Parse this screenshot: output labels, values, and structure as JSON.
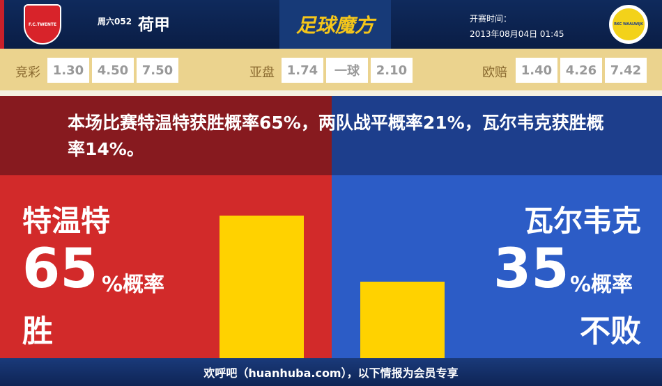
{
  "header": {
    "home_logo_text": "F.C.TWENTE",
    "away_logo_text": "RKC WAALWIJK",
    "match_no": "周六052",
    "league": "荷甲",
    "brand": "足球魔方",
    "time_label": "开赛时间：",
    "time_value": "2013年08月04日 01:45"
  },
  "odds": {
    "jingcai": {
      "label": "竞彩",
      "values": [
        "1.30",
        "4.50",
        "7.50"
      ]
    },
    "yapan": {
      "label": "亚盘",
      "values": [
        "1.74",
        "一球",
        "2.10"
      ]
    },
    "oupei": {
      "label": "欧赔",
      "values": [
        "1.40",
        "4.26",
        "7.42"
      ]
    }
  },
  "summary": "本场比赛特温特获胜概率65%，两队战平概率21%，瓦尔韦克获胜概率14%。",
  "home": {
    "name": "特温特",
    "percent": "65",
    "suffix": "%概率",
    "outcome": "胜",
    "value": 65
  },
  "away": {
    "name": "瓦尔韦克",
    "percent": "35",
    "suffix": "%概率",
    "outcome": "不败",
    "value": 35
  },
  "colors": {
    "home": "#d22a2a",
    "away": "#2c5cc6",
    "bar": "#ffd200"
  },
  "footer": "欢呼吧（huanhuba.com），以下情报为会员专享"
}
